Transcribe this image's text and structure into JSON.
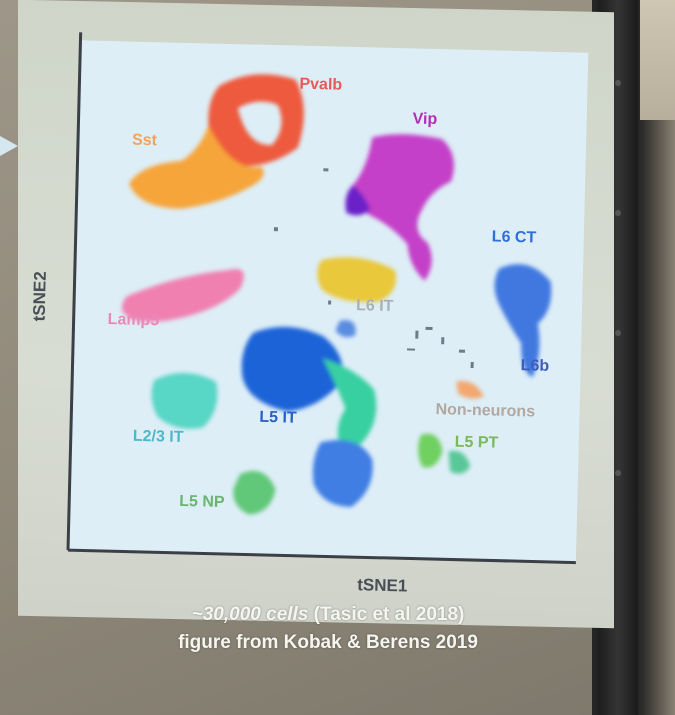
{
  "figure": {
    "ylabel": "tSNE2",
    "xlabel": "tSNE1"
  },
  "clusters": [
    {
      "label": "Pvalb",
      "color": "#e85a5a"
    },
    {
      "label": "Vip",
      "color": "#b02fb4"
    },
    {
      "label": "Sst",
      "color": "#f3a35a"
    },
    {
      "label": "L6 CT",
      "color": "#2f6fd8"
    },
    {
      "label": "Lamp5",
      "color": "#e88ab8"
    },
    {
      "label": "L6 IT",
      "color": "#a9b1b5"
    },
    {
      "label": "L6b",
      "color": "#3d5db8"
    },
    {
      "label": "L5 IT",
      "color": "#2a5ec8"
    },
    {
      "label": "Non-neurons",
      "color": "#b2a8a0"
    },
    {
      "label": "L2/3 IT",
      "color": "#4fb8c8"
    },
    {
      "label": "L5 PT",
      "color": "#7ab85a"
    },
    {
      "label": "L5 NP",
      "color": "#6ab56f"
    }
  ],
  "caption": {
    "line1_italic": "~30,000 cells",
    "line1_rest": " (Tasic et al 2018)",
    "line2": "figure from Kobak & Berens 2019"
  }
}
